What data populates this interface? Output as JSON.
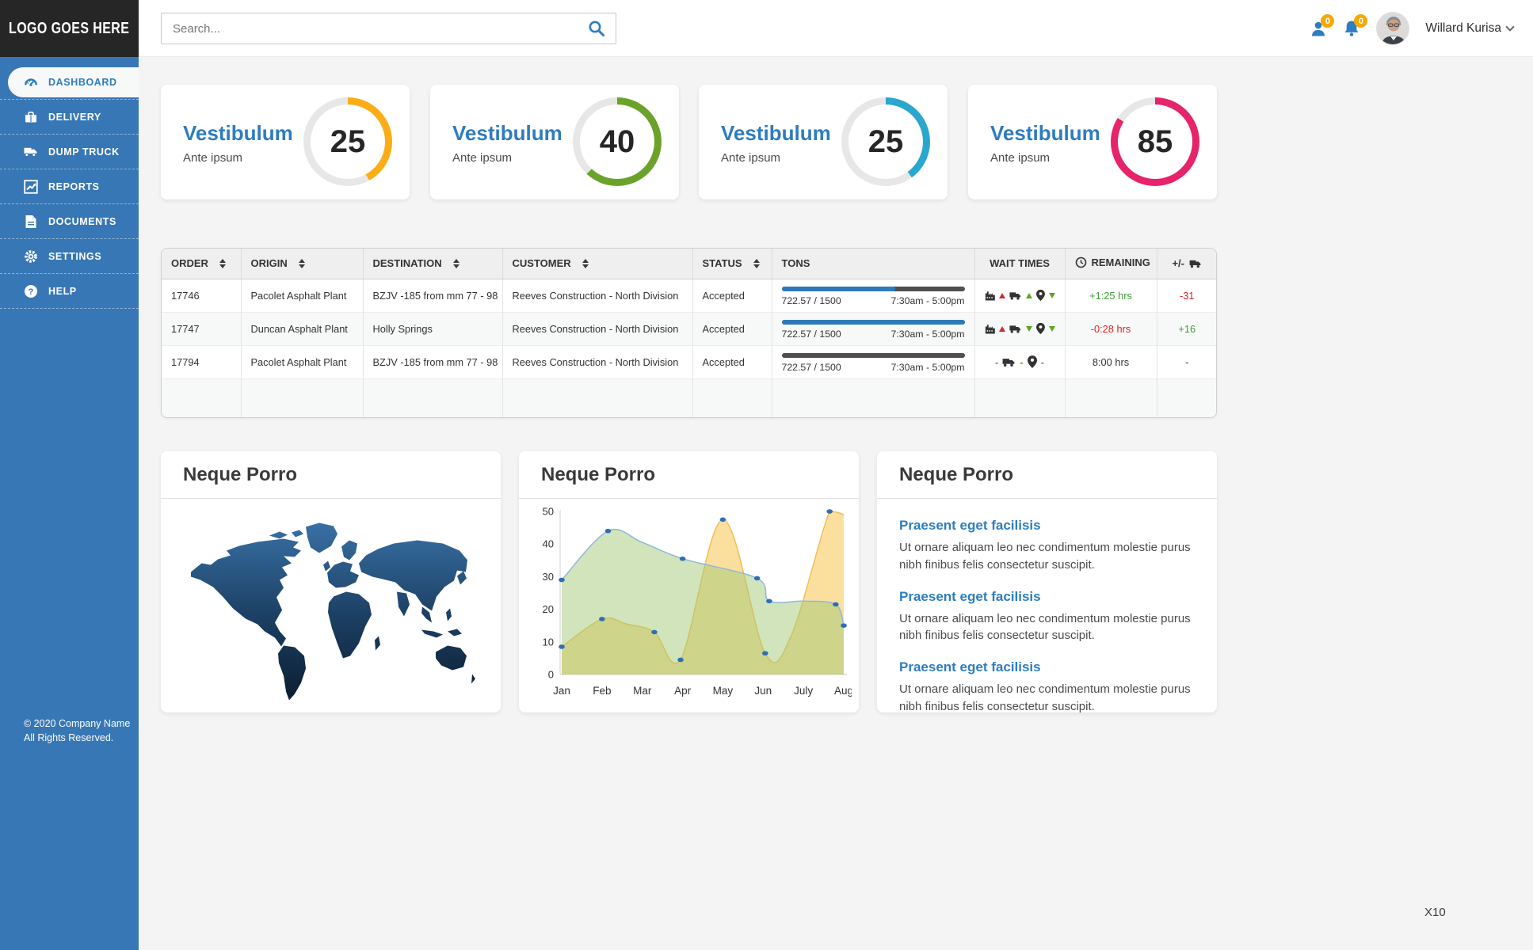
{
  "app": {
    "logo": "LOGO GOES HERE",
    "copyright1": "© 2020 Company Name",
    "copyright2": "All Rights Reserved.",
    "watermark": "X10"
  },
  "topbar": {
    "search_placeholder": "Search...",
    "user_badge": "0",
    "notification_badge": "0",
    "user_name": "Willard Kurisa"
  },
  "sidebar": {
    "items": [
      {
        "label": "DASHBOARD"
      },
      {
        "label": "DELIVERY"
      },
      {
        "label": "DUMP TRUCK"
      },
      {
        "label": "REPORTS"
      },
      {
        "label": "DOCUMENTS"
      },
      {
        "label": "SETTINGS"
      },
      {
        "label": "HELP"
      }
    ]
  },
  "stats": [
    {
      "title": "Vestibulum",
      "subtitle": "Ante ipsum",
      "value": "25",
      "color": "#FBAD18",
      "percent": 42
    },
    {
      "title": "Vestibulum",
      "subtitle": "Ante ipsum",
      "value": "40",
      "color": "#6BA32A",
      "percent": 62
    },
    {
      "title": "Vestibulum",
      "subtitle": "Ante ipsum",
      "value": "25",
      "color": "#2AA7CF",
      "percent": 40
    },
    {
      "title": "Vestibulum",
      "subtitle": "Ante ipsum",
      "value": "85",
      "color": "#E6236B",
      "percent": 84
    }
  ],
  "orders_table": {
    "columns": [
      "ORDER",
      "ORIGIN",
      "DESTINATION",
      "CUSTOMER",
      "STATUS",
      "TONS",
      "WAIT TIMES",
      "REMAINING",
      "+/-"
    ],
    "rows": [
      {
        "order": "17746",
        "origin": "Pacolet Asphalt Plant",
        "destination": "BZJV -185 from mm 77 - 98",
        "customer": "Reeves Construction - North Division",
        "status": "Accepted",
        "tons": "722.57 / 1500",
        "shift": "7:30am - 5:00pm",
        "bar_style": "--fill:#2E79BA;--track:#4F4F4F;--p:62%",
        "wait": {
          "plant_tri": "tri up red",
          "truck_tri": "tri up green",
          "location_tri": "tri down green"
        },
        "remaining": "+1:25 hrs",
        "remaining_class": "c-green",
        "delta": "-31",
        "delta_class": "c-red"
      },
      {
        "order": "17747",
        "origin": "Duncan Asphalt Plant",
        "destination": "Holly Springs",
        "customer": "Reeves Construction - North Division",
        "status": "Accepted",
        "tons": "722.57 / 1500",
        "shift": "7:30am - 5:00pm",
        "bar_style": "--fill:#2E79BA;--track:#2E79BA;--p:100%",
        "wait": {
          "plant_tri": "tri up red",
          "truck_tri": "tri down green",
          "location_tri": "tri down green"
        },
        "remaining": "-0:28 hrs",
        "remaining_class": "c-red",
        "delta": "+16",
        "delta_class": "c-green"
      },
      {
        "order": "17794",
        "origin": "Pacolet Asphalt Plant",
        "destination": "BZJV -185 from mm 77 - 98",
        "customer": "Reeves Construction - North Division",
        "status": "Accepted",
        "tons": "722.57 / 1500",
        "shift": "7:30am - 5:00pm",
        "bar_style": "--fill:#4F4F4F;--track:#4F4F4F;--p:100%",
        "wait": {
          "pre": "-",
          "mid": "-",
          "post": "-"
        },
        "remaining": "8:00 hrs",
        "remaining_class": "c-dark",
        "delta": "-",
        "delta_class": "c-dark"
      }
    ]
  },
  "cards": {
    "map": {
      "title": "Neque Porro"
    },
    "chart": {
      "title": "Neque Porro"
    },
    "list": {
      "title": "Neque Porro",
      "items": [
        {
          "link": "Praesent eget facilisis",
          "text": "Ut ornare aliquam leo nec condimentum molestie purus nibh finibus felis consectetur suscipit."
        },
        {
          "link": "Praesent eget facilisis",
          "text": "Ut ornare aliquam leo nec condimentum molestie purus nibh finibus felis consectetur suscipit."
        },
        {
          "link": "Praesent eget facilisis",
          "text": "Ut ornare aliquam leo nec condimentum molestie purus nibh finibus felis consectetur suscipit."
        }
      ]
    }
  },
  "chart_data": {
    "type": "area",
    "title": "Neque Porro",
    "x_labels": [
      "Jan",
      "Feb",
      "Mar",
      "Apr",
      "May",
      "Jun",
      "July",
      "Aug"
    ],
    "ylim": [
      0,
      50
    ],
    "yticks": [
      0,
      10,
      20,
      30,
      40,
      50
    ],
    "grid": false,
    "marker_color": "#2F6EB5",
    "series": [
      {
        "name": "yellow-area",
        "fill": "rgba(247,196,80,0.55)",
        "stroke": "rgba(240,185,70,0.9)",
        "points": [
          [
            0,
            8.5
          ],
          [
            1,
            17
          ],
          [
            1.6,
            15.5
          ],
          [
            2.3,
            13
          ],
          [
            2.95,
            4.5
          ],
          [
            4,
            47.5
          ],
          [
            5.05,
            6.5
          ],
          [
            5.7,
            12
          ],
          [
            6.65,
            50
          ],
          [
            7,
            49
          ]
        ],
        "markers": [
          [
            0,
            8.5
          ],
          [
            1,
            17
          ],
          [
            2.3,
            13
          ],
          [
            2.95,
            4.5
          ],
          [
            4,
            47.5
          ],
          [
            5.05,
            6.5
          ],
          [
            6.65,
            50
          ]
        ]
      },
      {
        "name": "green-area",
        "fill": "rgba(163,201,120,0.5)",
        "stroke": "#8FB8DA",
        "points": [
          [
            0,
            29
          ],
          [
            1.15,
            44
          ],
          [
            2,
            40.5
          ],
          [
            3,
            35.5
          ],
          [
            4.85,
            29.5
          ],
          [
            5.15,
            22.5
          ],
          [
            6,
            22.5
          ],
          [
            6.8,
            21.5
          ],
          [
            7,
            15
          ]
        ],
        "markers": [
          [
            0,
            29
          ],
          [
            1.15,
            44
          ],
          [
            3,
            35.5
          ],
          [
            4.85,
            29.5
          ],
          [
            5.15,
            22.5
          ],
          [
            6.8,
            21.5
          ],
          [
            7,
            15
          ]
        ]
      }
    ]
  }
}
